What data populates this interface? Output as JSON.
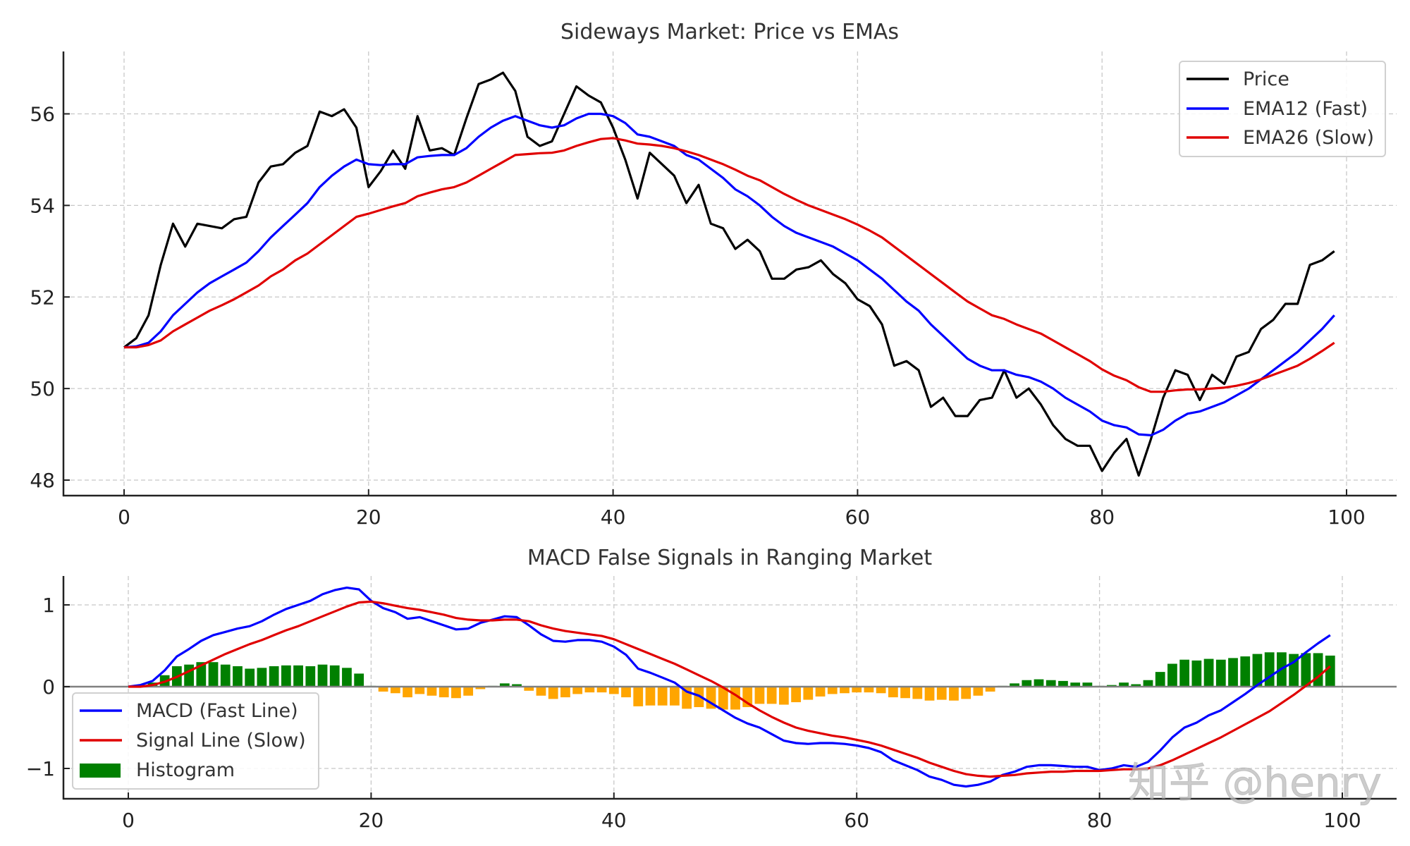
{
  "chart_data": [
    {
      "type": "line",
      "title": "Sideways Market: Price vs EMAs",
      "xlabel": "",
      "ylabel": "",
      "xlim": [
        -5,
        104
      ],
      "ylim": [
        47.7,
        57.4
      ],
      "xticks": [
        "0",
        "20",
        "40",
        "60",
        "80",
        "100"
      ],
      "yticks": [
        "48",
        "50",
        "52",
        "54",
        "56"
      ],
      "grid": true,
      "legend_position": "top-right",
      "x_start": 0,
      "series": [
        {
          "name": "Price",
          "color": "#000000",
          "values": [
            50.9,
            51.1,
            51.6,
            52.7,
            53.6,
            53.1,
            53.6,
            53.55,
            53.5,
            53.7,
            53.75,
            54.5,
            54.85,
            54.9,
            55.15,
            55.3,
            56.05,
            55.95,
            56.1,
            55.7,
            54.4,
            54.75,
            55.2,
            54.8,
            55.95,
            55.2,
            55.25,
            55.1,
            55.9,
            56.65,
            56.75,
            56.9,
            56.5,
            55.5,
            55.3,
            55.4,
            56.0,
            56.6,
            56.4,
            56.25,
            55.7,
            55.0,
            54.15,
            55.15,
            54.9,
            54.65,
            54.05,
            54.45,
            53.6,
            53.5,
            53.05,
            53.25,
            53.0,
            52.4,
            52.4,
            52.6,
            52.65,
            52.8,
            52.5,
            52.3,
            51.95,
            51.8,
            51.4,
            50.5,
            50.6,
            50.4,
            49.6,
            49.8,
            49.4,
            49.4,
            49.75,
            49.8,
            50.4,
            49.8,
            50.0,
            49.65,
            49.2,
            48.9,
            48.75,
            48.75,
            48.2,
            48.6,
            48.9,
            48.1,
            48.9,
            49.8,
            50.4,
            50.3,
            49.75,
            50.3,
            50.1,
            50.7,
            50.8,
            51.3,
            51.5,
            51.85,
            51.85,
            52.7,
            52.8,
            53.0
          ]
        },
        {
          "name": "EMA12 (Fast)",
          "color": "#0000ff",
          "values": [
            50.9,
            50.92,
            51.0,
            51.25,
            51.6,
            51.85,
            52.1,
            52.3,
            52.45,
            52.6,
            52.75,
            53.0,
            53.3,
            53.55,
            53.8,
            54.05,
            54.4,
            54.65,
            54.85,
            55.0,
            54.9,
            54.88,
            54.9,
            54.9,
            55.05,
            55.08,
            55.1,
            55.1,
            55.25,
            55.5,
            55.7,
            55.85,
            55.95,
            55.85,
            55.75,
            55.7,
            55.75,
            55.9,
            56.0,
            56.0,
            55.95,
            55.8,
            55.55,
            55.5,
            55.4,
            55.3,
            55.1,
            55.0,
            54.8,
            54.6,
            54.35,
            54.2,
            54.0,
            53.75,
            53.55,
            53.4,
            53.3,
            53.2,
            53.1,
            52.95,
            52.8,
            52.6,
            52.4,
            52.15,
            51.9,
            51.7,
            51.4,
            51.15,
            50.9,
            50.65,
            50.5,
            50.4,
            50.4,
            50.3,
            50.25,
            50.15,
            50.0,
            49.8,
            49.65,
            49.5,
            49.3,
            49.2,
            49.15,
            49.0,
            48.98,
            49.1,
            49.3,
            49.45,
            49.5,
            49.6,
            49.7,
            49.85,
            50.0,
            50.2,
            50.4,
            50.6,
            50.8,
            51.05,
            51.3,
            51.6
          ]
        },
        {
          "name": "EMA26 (Slow)",
          "color": "#e00000",
          "values": [
            50.9,
            50.9,
            50.95,
            51.05,
            51.25,
            51.4,
            51.55,
            51.7,
            51.82,
            51.95,
            52.1,
            52.25,
            52.45,
            52.6,
            52.8,
            52.95,
            53.15,
            53.35,
            53.55,
            53.75,
            53.82,
            53.9,
            53.98,
            54.05,
            54.2,
            54.28,
            54.35,
            54.4,
            54.5,
            54.65,
            54.8,
            54.95,
            55.1,
            55.12,
            55.14,
            55.15,
            55.2,
            55.3,
            55.38,
            55.45,
            55.47,
            55.42,
            55.35,
            55.33,
            55.3,
            55.25,
            55.18,
            55.1,
            55.0,
            54.9,
            54.78,
            54.65,
            54.55,
            54.4,
            54.25,
            54.12,
            54.0,
            53.9,
            53.8,
            53.7,
            53.58,
            53.45,
            53.3,
            53.1,
            52.9,
            52.7,
            52.5,
            52.3,
            52.1,
            51.9,
            51.75,
            51.6,
            51.52,
            51.4,
            51.3,
            51.2,
            51.05,
            50.9,
            50.75,
            50.6,
            50.42,
            50.28,
            50.18,
            50.03,
            49.93,
            49.93,
            49.96,
            49.98,
            49.98,
            50.0,
            50.02,
            50.06,
            50.12,
            50.2,
            50.3,
            50.4,
            50.5,
            50.65,
            50.82,
            51.0
          ]
        }
      ]
    },
    {
      "type": "line+bar",
      "title": "MACD False Signals in Ranging Market",
      "xlabel": "",
      "ylabel": "",
      "xlim": [
        -5,
        104
      ],
      "ylim": [
        -1.35,
        1.35
      ],
      "xticks": [
        "0",
        "20",
        "40",
        "60",
        "80",
        "100"
      ],
      "yticks": [
        "−1",
        "0",
        "1"
      ],
      "grid": true,
      "legend_position": "lower-left",
      "zero_line_color": "#808080",
      "x_start": 0,
      "series": [
        {
          "name": "MACD (Fast Line)",
          "color": "#0000ff",
          "values": [
            0,
            0.02,
            0.07,
            0.2,
            0.37,
            0.46,
            0.56,
            0.63,
            0.67,
            0.71,
            0.74,
            0.8,
            0.88,
            0.95,
            1.0,
            1.05,
            1.13,
            1.18,
            1.21,
            1.19,
            1.05,
            0.96,
            0.91,
            0.83,
            0.85,
            0.8,
            0.75,
            0.7,
            0.71,
            0.78,
            0.82,
            0.86,
            0.85,
            0.75,
            0.64,
            0.56,
            0.55,
            0.57,
            0.57,
            0.55,
            0.49,
            0.39,
            0.22,
            0.17,
            0.11,
            0.05,
            -0.06,
            -0.11,
            -0.2,
            -0.29,
            -0.38,
            -0.45,
            -0.5,
            -0.58,
            -0.66,
            -0.69,
            -0.7,
            -0.69,
            -0.69,
            -0.7,
            -0.72,
            -0.75,
            -0.8,
            -0.9,
            -0.96,
            -1.02,
            -1.1,
            -1.14,
            -1.2,
            -1.22,
            -1.2,
            -1.16,
            -1.08,
            -1.04,
            -0.98,
            -0.96,
            -0.96,
            -0.97,
            -0.98,
            -0.98,
            -1.02,
            -1.0,
            -0.96,
            -0.98,
            -0.92,
            -0.78,
            -0.62,
            -0.5,
            -0.44,
            -0.35,
            -0.29,
            -0.19,
            -0.09,
            0.02,
            0.12,
            0.22,
            0.3,
            0.42,
            0.53,
            0.63
          ]
        },
        {
          "name": "Signal Line (Slow)",
          "color": "#e00000",
          "values": [
            0,
            0,
            0.02,
            0.06,
            0.12,
            0.19,
            0.26,
            0.33,
            0.4,
            0.46,
            0.52,
            0.57,
            0.63,
            0.69,
            0.74,
            0.8,
            0.86,
            0.92,
            0.98,
            1.03,
            1.04,
            1.02,
            0.99,
            0.96,
            0.94,
            0.91,
            0.88,
            0.84,
            0.82,
            0.81,
            0.81,
            0.82,
            0.82,
            0.8,
            0.75,
            0.71,
            0.68,
            0.66,
            0.64,
            0.62,
            0.58,
            0.52,
            0.46,
            0.4,
            0.34,
            0.28,
            0.21,
            0.14,
            0.07,
            -0.01,
            -0.1,
            -0.2,
            -0.29,
            -0.37,
            -0.44,
            -0.5,
            -0.54,
            -0.57,
            -0.6,
            -0.62,
            -0.65,
            -0.68,
            -0.72,
            -0.77,
            -0.82,
            -0.87,
            -0.93,
            -0.98,
            -1.03,
            -1.07,
            -1.09,
            -1.1,
            -1.09,
            -1.08,
            -1.06,
            -1.05,
            -1.04,
            -1.04,
            -1.03,
            -1.03,
            -1.03,
            -1.02,
            -1.01,
            -1.01,
            -1.0,
            -0.96,
            -0.9,
            -0.83,
            -0.76,
            -0.69,
            -0.62,
            -0.54,
            -0.46,
            -0.38,
            -0.3,
            -0.2,
            -0.1,
            0.01,
            0.12,
            0.25
          ]
        },
        {
          "name": "Histogram",
          "type": "bar",
          "color_positive": "#008000",
          "color_negative": "#ffa500",
          "values": [
            0,
            0.02,
            0.05,
            0.14,
            0.25,
            0.27,
            0.3,
            0.3,
            0.27,
            0.25,
            0.22,
            0.23,
            0.25,
            0.26,
            0.26,
            0.25,
            0.27,
            0.26,
            0.23,
            0.16,
            0.01,
            -0.06,
            -0.08,
            -0.13,
            -0.09,
            -0.11,
            -0.13,
            -0.14,
            -0.11,
            -0.03,
            0.01,
            0.04,
            0.03,
            -0.05,
            -0.11,
            -0.15,
            -0.13,
            -0.09,
            -0.07,
            -0.07,
            -0.09,
            -0.13,
            -0.24,
            -0.23,
            -0.23,
            -0.23,
            -0.27,
            -0.25,
            -0.27,
            -0.28,
            -0.28,
            -0.25,
            -0.21,
            -0.21,
            -0.22,
            -0.19,
            -0.16,
            -0.12,
            -0.09,
            -0.08,
            -0.07,
            -0.07,
            -0.08,
            -0.13,
            -0.14,
            -0.15,
            -0.17,
            -0.16,
            -0.17,
            -0.15,
            -0.11,
            -0.06,
            0.01,
            0.04,
            0.08,
            0.09,
            0.08,
            0.07,
            0.05,
            0.05,
            0.01,
            0.02,
            0.05,
            0.03,
            0.08,
            0.18,
            0.28,
            0.33,
            0.32,
            0.34,
            0.33,
            0.35,
            0.37,
            0.4,
            0.42,
            0.42,
            0.4,
            0.41,
            0.41,
            0.38
          ]
        }
      ]
    }
  ],
  "watermark": "知乎 @henry"
}
